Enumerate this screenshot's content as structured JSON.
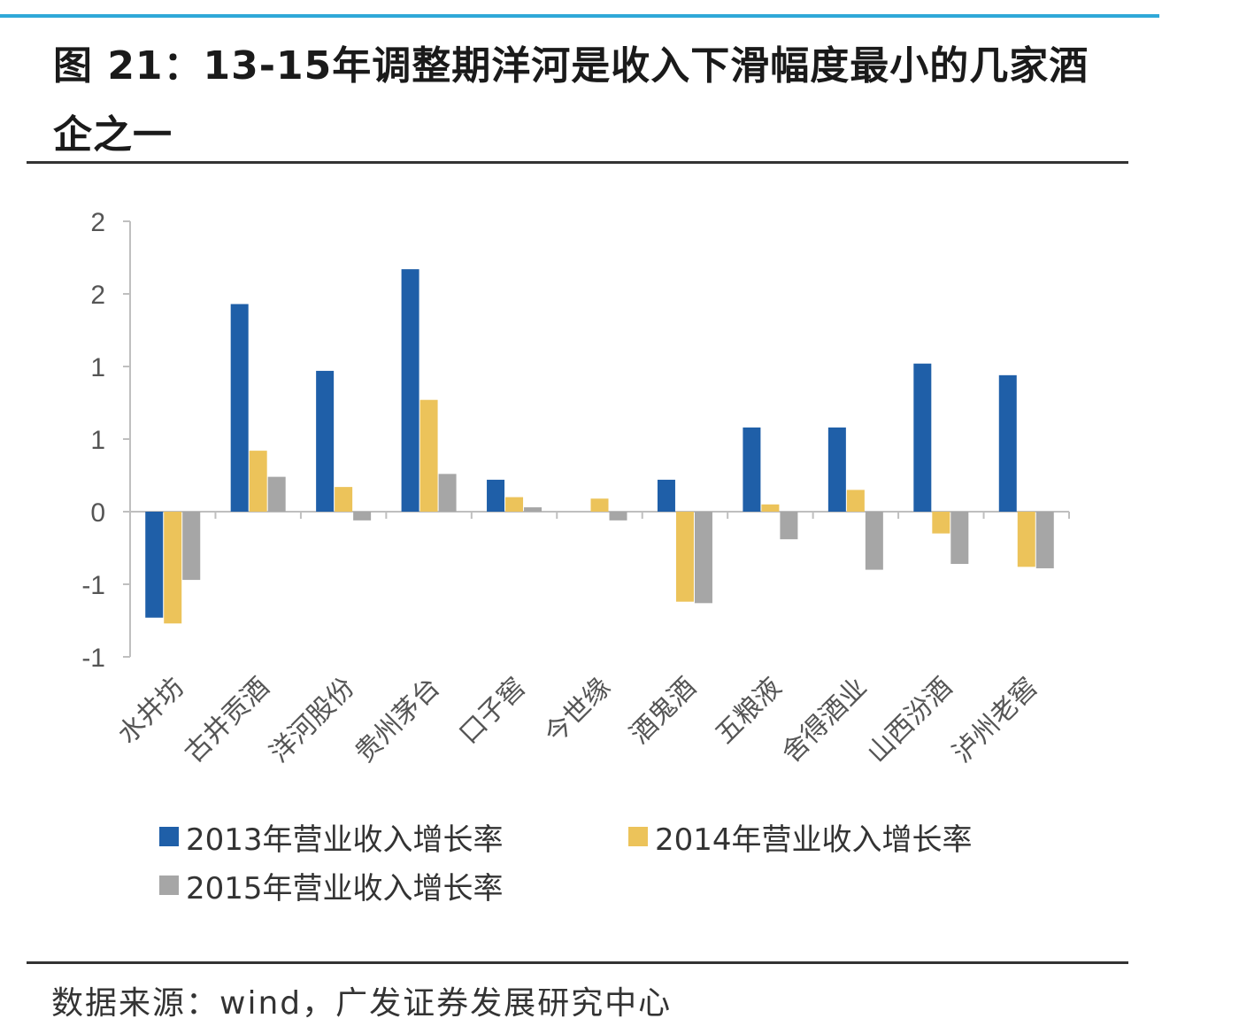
{
  "title": "图 21：13-15年调整期洋河是收入下滑幅度最小的几家酒企之一",
  "source": "数据来源：wind，广发证券发展研究中心",
  "colors": {
    "series_2013": "#1f5fa8",
    "series_2014": "#ecc35a",
    "series_2015": "#a6a6a6",
    "axis": "#bfbfbf",
    "tick_label": "#555555"
  },
  "chart_data": {
    "type": "bar",
    "title": "",
    "xlabel": "",
    "ylabel": "",
    "ylim": [
      -1,
      2
    ],
    "y_ticks": [
      {
        "value": 2,
        "label": "2"
      },
      {
        "value": 1.5,
        "label": "2"
      },
      {
        "value": 1,
        "label": "1"
      },
      {
        "value": 0.5,
        "label": "1"
      },
      {
        "value": 0,
        "label": "0"
      },
      {
        "value": -0.5,
        "label": "-1"
      },
      {
        "value": -1,
        "label": "-1"
      }
    ],
    "categories": [
      "水井坊",
      "古井贡酒",
      "洋河股份",
      "贵州茅台",
      "口子窖",
      "今世缘",
      "酒鬼酒",
      "五粮液",
      "舍得酒业",
      "山西汾酒",
      "泸州老窖"
    ],
    "series": [
      {
        "name": "2013年营业收入增长率",
        "values": [
          -0.73,
          1.43,
          0.97,
          1.67,
          0.22,
          0.0,
          0.22,
          0.58,
          0.58,
          1.02,
          0.94
        ]
      },
      {
        "name": "2014年营业收入增长率",
        "values": [
          -0.77,
          0.42,
          0.17,
          0.77,
          0.1,
          0.09,
          -0.62,
          0.05,
          0.15,
          -0.15,
          -0.38
        ]
      },
      {
        "name": "2015年营业收入增长率",
        "values": [
          -0.47,
          0.24,
          -0.06,
          0.26,
          0.03,
          -0.06,
          -0.63,
          -0.19,
          -0.4,
          -0.36,
          -0.39
        ]
      }
    ],
    "legend": "bottom",
    "grid": false
  }
}
